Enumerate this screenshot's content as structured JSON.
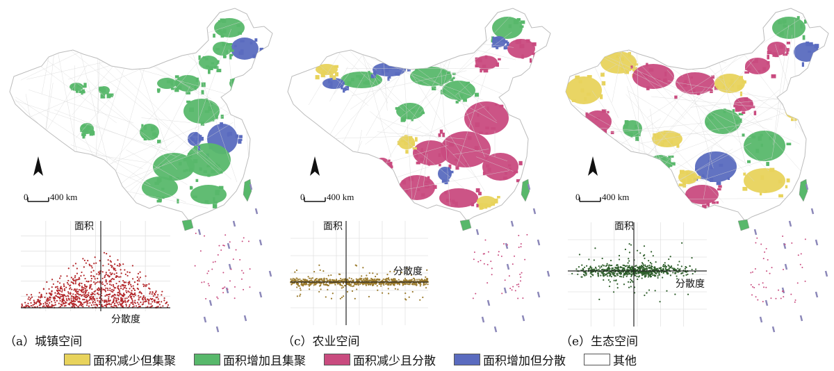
{
  "panels": [
    {
      "id": "a",
      "caption": "（a）城镇空间",
      "scatter_y_label": "面积",
      "scatter_x_label": "分散度",
      "scale": "400 km",
      "scale_zero": "0",
      "point_color": "#b3272a",
      "map_colors": {
        "base": "#ffffff",
        "green": "#58b86b",
        "blue": "#5a6bbf"
      }
    },
    {
      "id": "c",
      "caption": "（c）农业空间",
      "scatter_y_label": "面积",
      "scatter_x_label": "分散度",
      "scale": "400 km",
      "scale_zero": "0",
      "point_color": "#9a7a2c",
      "map_colors": {
        "base": "#ffffff",
        "green": "#58b86b",
        "pink": "#c94b7f",
        "blue": "#5a6bbf",
        "yellow": "#e8d35c"
      }
    },
    {
      "id": "e",
      "caption": "（e）生态空间",
      "scatter_y_label": "面积",
      "scatter_x_label": "分散度",
      "scale": "400 km",
      "scale_zero": "0",
      "point_color": "#2f5f2c",
      "map_colors": {
        "base": "#ffffff",
        "green": "#58b86b",
        "pink": "#c94b7f",
        "blue": "#5a6bbf",
        "yellow": "#e8d35c"
      }
    }
  ],
  "legend": [
    {
      "label": "面积减少但集聚",
      "color": "#e8d35c"
    },
    {
      "label": "面积增加且集聚",
      "color": "#58b86b"
    },
    {
      "label": "面积减少且分散",
      "color": "#c94b7f"
    },
    {
      "label": "面积增加但分散",
      "color": "#5a6bbf"
    },
    {
      "label": "其他",
      "color": "#ffffff"
    }
  ]
}
